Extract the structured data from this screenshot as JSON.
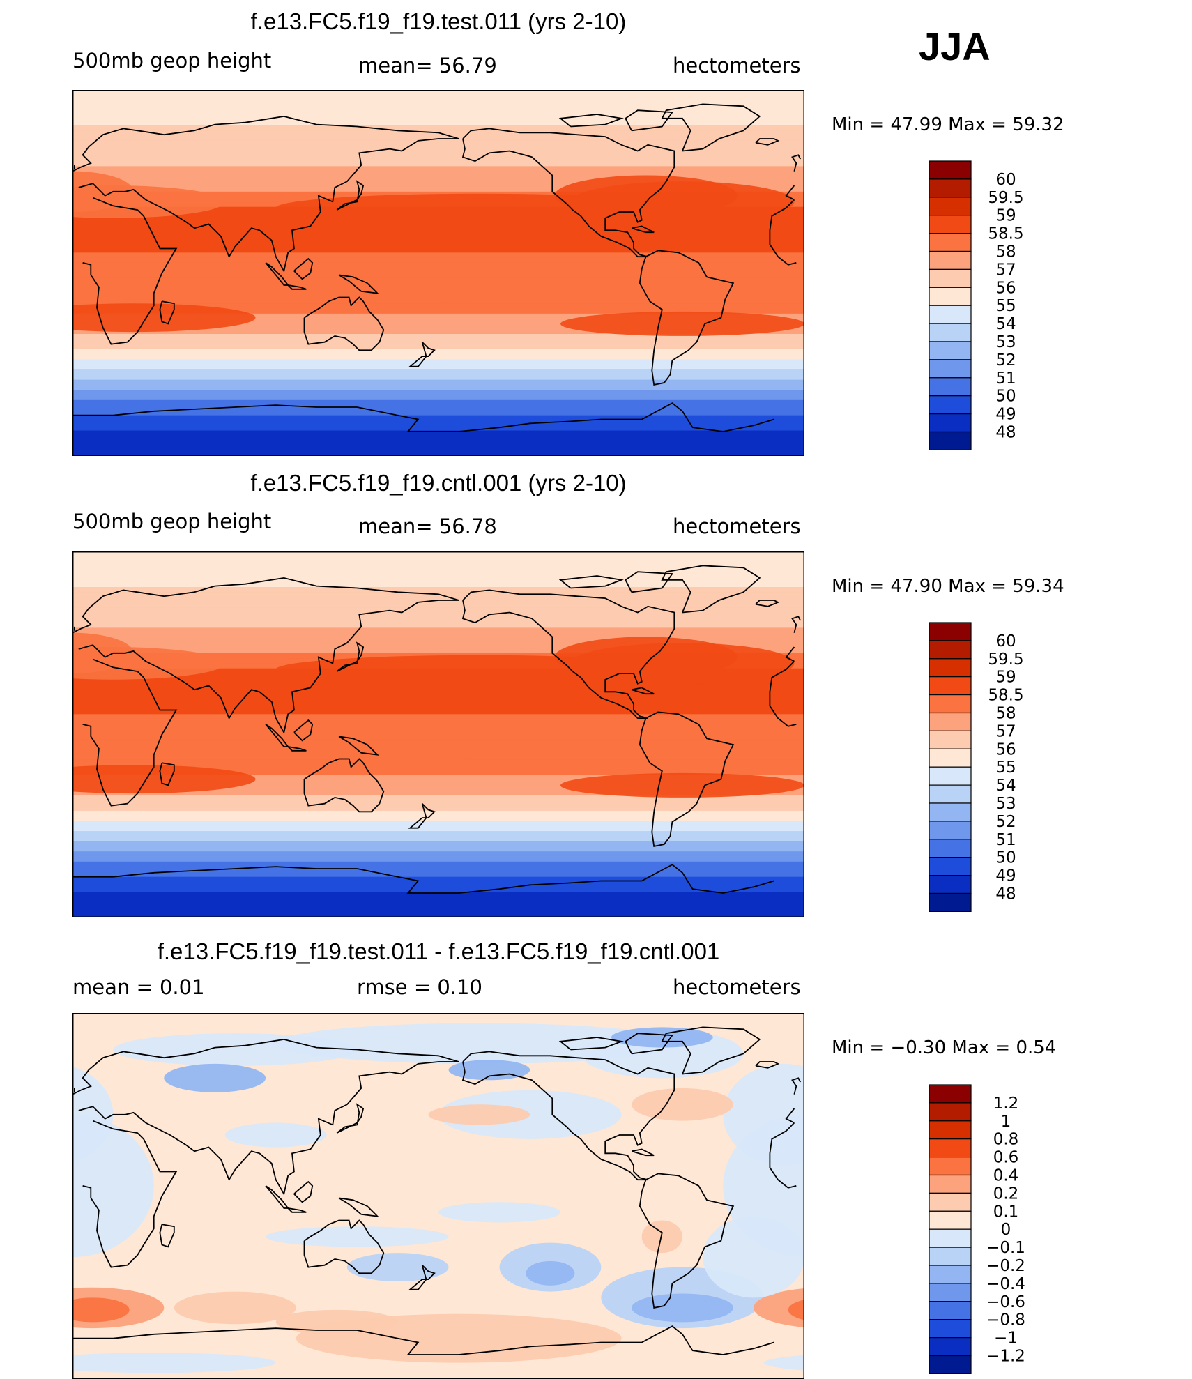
{
  "season": "JJA",
  "panels": [
    {
      "id": "test",
      "title": "f.e13.FC5.f19_f19.test.011 (yrs 2-10)",
      "left_label": "500mb geop height",
      "mid_label": "mean=   56.79",
      "right_label": "hectometers",
      "min_max": "Min =   47.99  Max =   59.32",
      "colorbar": {
        "labels": [
          "60",
          "59.5",
          "59",
          "58.5",
          "58",
          "57",
          "56",
          "55",
          "54",
          "53",
          "52",
          "51",
          "50",
          "49",
          "48"
        ],
        "colors": [
          "#8b0000",
          "#b41c00",
          "#d63000",
          "#f24a14",
          "#fa7340",
          "#fca27c",
          "#fdcbaf",
          "#fee7d5",
          "#d8e8fa",
          "#b9d3f7",
          "#93b6f2",
          "#6f98ec",
          "#4573e6",
          "#1f4ddb",
          "#0a2ec2",
          "#001a92"
        ]
      }
    },
    {
      "id": "cntl",
      "title": "f.e13.FC5.f19_f19.cntl.001 (yrs 2-10)",
      "left_label": "500mb geop height",
      "mid_label": "mean=   56.78",
      "right_label": "hectometers",
      "min_max": "Min =   47.90  Max =   59.34",
      "colorbar": {
        "labels": [
          "60",
          "59.5",
          "59",
          "58.5",
          "58",
          "57",
          "56",
          "55",
          "54",
          "53",
          "52",
          "51",
          "50",
          "49",
          "48"
        ],
        "colors": [
          "#8b0000",
          "#b41c00",
          "#d63000",
          "#f24a14",
          "#fa7340",
          "#fca27c",
          "#fdcbaf",
          "#fee7d5",
          "#d8e8fa",
          "#b9d3f7",
          "#93b6f2",
          "#6f98ec",
          "#4573e6",
          "#1f4ddb",
          "#0a2ec2",
          "#001a92"
        ]
      }
    },
    {
      "id": "diff",
      "title": "f.e13.FC5.f19_f19.test.011 - f.e13.FC5.f19_f19.cntl.001",
      "left_label": "mean =     0.01",
      "mid_label": "rmse =     0.10",
      "right_label": "hectometers",
      "min_max": "Min =   −0.30  Max =     0.54",
      "colorbar": {
        "labels": [
          "1.2",
          "1",
          "0.8",
          "0.6",
          "0.4",
          "0.2",
          "0.1",
          "0",
          "−0.1",
          "−0.2",
          "−0.4",
          "−0.6",
          "−0.8",
          "−1",
          "−1.2"
        ],
        "colors": [
          "#8b0000",
          "#b41c00",
          "#d63000",
          "#f24a14",
          "#fa7340",
          "#fca27c",
          "#fdcbaf",
          "#fee7d5",
          "#d8e8fa",
          "#b9d3f7",
          "#93b6f2",
          "#6f98ec",
          "#4573e6",
          "#1f4ddb",
          "#0a2ec2",
          "#001a92"
        ]
      }
    }
  ],
  "chart_data": [
    {
      "type": "heatmap",
      "title": "f.e13.FC5.f19_f19.test.011 (yrs 2-10)",
      "variable": "500mb geop height",
      "units": "hectometers",
      "season": "JJA",
      "mean": 56.79,
      "min": 47.99,
      "max": 59.32,
      "contour_levels": [
        48,
        49,
        50,
        51,
        52,
        53,
        54,
        55,
        56,
        57,
        58,
        58.5,
        59,
        59.5,
        60
      ],
      "zonal_profile": {
        "lat": [
          90,
          75,
          60,
          45,
          30,
          15,
          0,
          -15,
          -30,
          -45,
          -60,
          -75,
          -90
        ],
        "value": [
          55.4,
          55.9,
          56.4,
          57.6,
          58.7,
          58.6,
          58.3,
          58.4,
          57.0,
          54.8,
          51.3,
          49.3,
          48.0
        ]
      }
    },
    {
      "type": "heatmap",
      "title": "f.e13.FC5.f19_f19.cntl.001 (yrs 2-10)",
      "variable": "500mb geop height",
      "units": "hectometers",
      "season": "JJA",
      "mean": 56.78,
      "min": 47.9,
      "max": 59.34,
      "contour_levels": [
        48,
        49,
        50,
        51,
        52,
        53,
        54,
        55,
        56,
        57,
        58,
        58.5,
        59,
        59.5,
        60
      ],
      "zonal_profile": {
        "lat": [
          90,
          75,
          60,
          45,
          30,
          15,
          0,
          -15,
          -30,
          -45,
          -60,
          -75,
          -90
        ],
        "value": [
          55.4,
          55.9,
          56.4,
          57.6,
          58.7,
          58.6,
          58.3,
          58.4,
          57.0,
          54.7,
          51.2,
          49.2,
          47.9
        ]
      }
    },
    {
      "type": "heatmap",
      "title": "f.e13.FC5.f19_f19.test.011 - f.e13.FC5.f19_f19.cntl.001",
      "variable": "difference",
      "units": "hectometers",
      "season": "JJA",
      "mean": 0.01,
      "rmse": 0.1,
      "min": -0.3,
      "max": 0.54,
      "contour_levels": [
        -1.2,
        -1,
        -0.8,
        -0.6,
        -0.4,
        -0.2,
        -0.1,
        0,
        0.1,
        0.2,
        0.4,
        0.6,
        0.8,
        1,
        1.2
      ]
    }
  ]
}
